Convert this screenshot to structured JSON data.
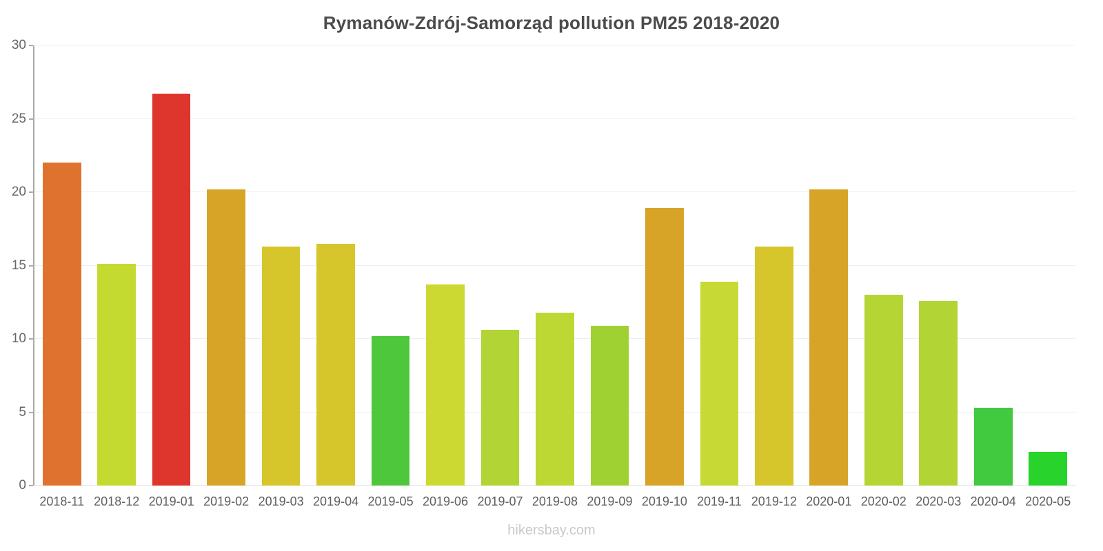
{
  "footer": "hikersbay.com",
  "chart_data": {
    "type": "bar",
    "title": "Rymanów-Zdrój-Samorząd pollution PM25 2018-2020",
    "xlabel": "",
    "ylabel": "",
    "ylim": [
      0,
      30
    ],
    "yticks": [
      0,
      5,
      10,
      15,
      20,
      25,
      30
    ],
    "grid": true,
    "legend_position": "none",
    "categories": [
      "2018-11",
      "2018-12",
      "2019-01",
      "2019-02",
      "2019-03",
      "2019-04",
      "2019-05",
      "2019-06",
      "2019-07",
      "2019-08",
      "2019-09",
      "2019-10",
      "2019-11",
      "2019-12",
      "2020-01",
      "2020-02",
      "2020-03",
      "2020-04",
      "2020-05"
    ],
    "values": [
      22.0,
      15.1,
      26.7,
      20.2,
      16.3,
      16.5,
      10.2,
      13.7,
      10.6,
      11.8,
      10.9,
      18.9,
      13.9,
      16.3,
      20.2,
      13.0,
      12.6,
      5.3,
      2.3
    ],
    "colors": [
      "#e0722f",
      "#c4da30",
      "#de352c",
      "#d8a428",
      "#d6c62b",
      "#d6c62b",
      "#4fc73c",
      "#ccd933",
      "#b2d434",
      "#bdd733",
      "#a0d133",
      "#d8a428",
      "#c6d934",
      "#d6c62b",
      "#d8a428",
      "#b4d534",
      "#b2d434",
      "#41c940",
      "#28d32b"
    ]
  }
}
